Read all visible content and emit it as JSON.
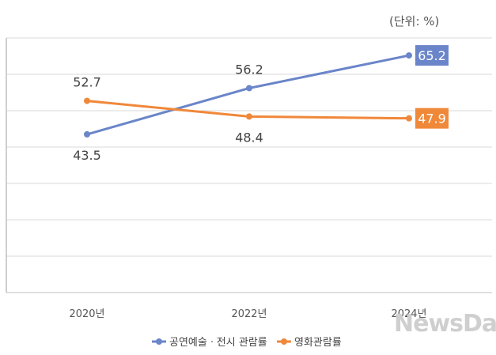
{
  "unit_label": "(단위: %)",
  "watermark": "NewsDa",
  "colors": {
    "series_1": "#6a85c9",
    "series_2": "#f0883a",
    "grid": "#d9d9d9",
    "axis": "#bfbfbf",
    "text": "#444444"
  },
  "chart_data": {
    "type": "line",
    "x": [
      "2020년",
      "2022년",
      "2024년"
    ],
    "ylim": [
      0,
      70
    ],
    "grid": true,
    "legend_position": "bottom",
    "series": [
      {
        "name": "공연예술ㆍ전시 관람률",
        "values": [
          43.5,
          56.2,
          65.2
        ]
      },
      {
        "name": "영화관람률",
        "values": [
          52.7,
          48.4,
          47.9
        ]
      }
    ]
  }
}
